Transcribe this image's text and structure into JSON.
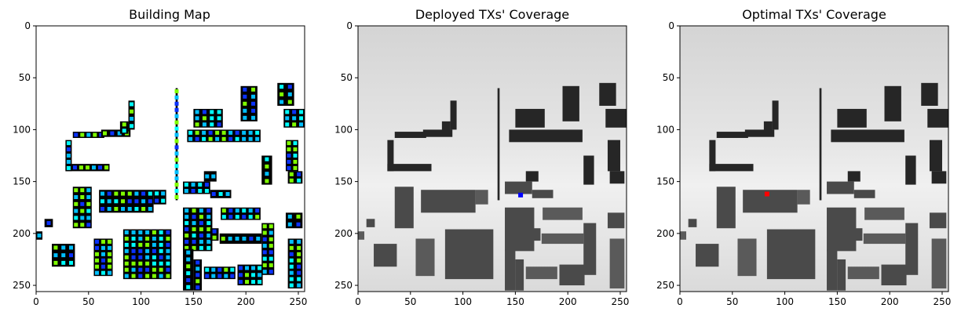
{
  "chart_data": [
    {
      "type": "heatmap",
      "title": "Building Map",
      "xlim": [
        0,
        256
      ],
      "ylim": [
        256,
        0
      ],
      "xticks": [
        0,
        50,
        100,
        150,
        200,
        250
      ],
      "yticks": [
        0,
        50,
        100,
        150,
        200,
        250
      ],
      "background": "#ffffff",
      "building_color": "#000000",
      "marker_colors": [
        "#7fff00",
        "#00bfff",
        "#0a32ff",
        "#00ffff"
      ],
      "points": [
        {
          "x": 3,
          "y": 202
        },
        {
          "x": 90,
          "y": 70
        },
        {
          "x": 133,
          "y": 60
        },
        {
          "x": 155,
          "y": 207
        },
        {
          "x": 230,
          "y": 60
        }
      ]
    },
    {
      "type": "heatmap",
      "title": "Deployed TXs' Coverage",
      "xlim": [
        0,
        256
      ],
      "ylim": [
        256,
        0
      ],
      "xticks": [
        0,
        50,
        100,
        150,
        200,
        250
      ],
      "yticks": [
        0,
        50,
        100,
        150,
        200,
        250
      ],
      "colormap": "gray",
      "tx": {
        "x": 155,
        "y": 163,
        "color": "#0000ff"
      }
    },
    {
      "type": "heatmap",
      "title": "Optimal TXs' Coverage",
      "xlim": [
        0,
        256
      ],
      "ylim": [
        256,
        0
      ],
      "xticks": [
        0,
        50,
        100,
        150,
        200,
        250
      ],
      "yticks": [
        0,
        50,
        100,
        150,
        200,
        250
      ],
      "colormap": "gray",
      "tx": {
        "x": 83,
        "y": 162,
        "color": "#ff0000"
      }
    }
  ]
}
